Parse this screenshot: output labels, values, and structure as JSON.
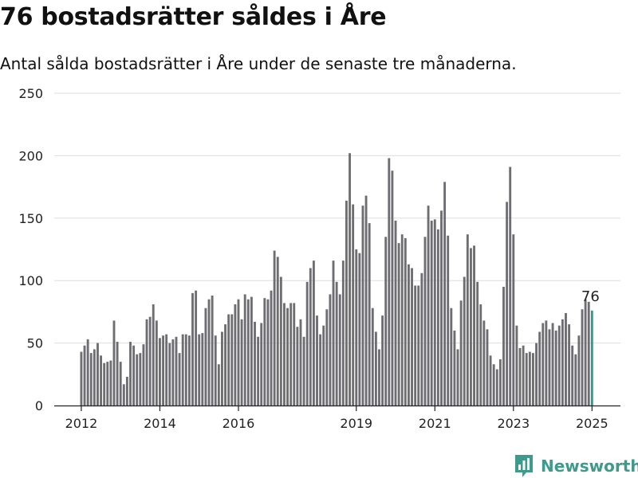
{
  "title": "76 bostadsrätter såldes i Åre",
  "subtitle": "Antal sålda bostadsrätter i Åre under de senaste tre månaderna.",
  "brand": "Newsworthy",
  "colors": {
    "bar": "#6e6d72",
    "highlight": "#2a9d8f",
    "grid": "#dddddd",
    "brand": "#3d9a8c"
  },
  "chart_data": {
    "type": "bar",
    "title": "76 bostadsrätter såldes i Åre",
    "subtitle": "Antal sålda bostadsrätter i Åre under de senaste tre månaderna.",
    "xlabel": "",
    "ylabel": "",
    "ylim": [
      0,
      250
    ],
    "yticks": [
      0,
      50,
      100,
      150,
      200,
      250
    ],
    "xticks": [
      "2012",
      "2014",
      "2016",
      "2019",
      "2021",
      "2023",
      "2025"
    ],
    "grid": true,
    "highlight_label": "76",
    "values": [
      43,
      48,
      53,
      42,
      45,
      50,
      40,
      34,
      35,
      36,
      68,
      51,
      35,
      17,
      23,
      51,
      48,
      41,
      42,
      49,
      69,
      71,
      81,
      68,
      54,
      56,
      57,
      50,
      53,
      55,
      42,
      57,
      57,
      56,
      90,
      92,
      57,
      58,
      78,
      85,
      88,
      56,
      33,
      59,
      65,
      73,
      73,
      81,
      85,
      69,
      89,
      85,
      87,
      67,
      55,
      66,
      86,
      85,
      92,
      124,
      119,
      103,
      82,
      78,
      82,
      82,
      63,
      69,
      55,
      99,
      110,
      116,
      72,
      57,
      64,
      77,
      89,
      116,
      99,
      89,
      116,
      164,
      202,
      161,
      125,
      122,
      160,
      168,
      146,
      78,
      59,
      45,
      72,
      135,
      198,
      188,
      148,
      130,
      137,
      134,
      113,
      110,
      96,
      96,
      106,
      135,
      160,
      148,
      149,
      141,
      156,
      179,
      136,
      78,
      60,
      45,
      84,
      103,
      137,
      126,
      128,
      99,
      81,
      68,
      61,
      40,
      33,
      29,
      37,
      95,
      163,
      191,
      137,
      64,
      46,
      48,
      42,
      43,
      42,
      50,
      59,
      66,
      68,
      61,
      66,
      60,
      64,
      69,
      74,
      65,
      48,
      41,
      56,
      77,
      85,
      83,
      76
    ]
  }
}
